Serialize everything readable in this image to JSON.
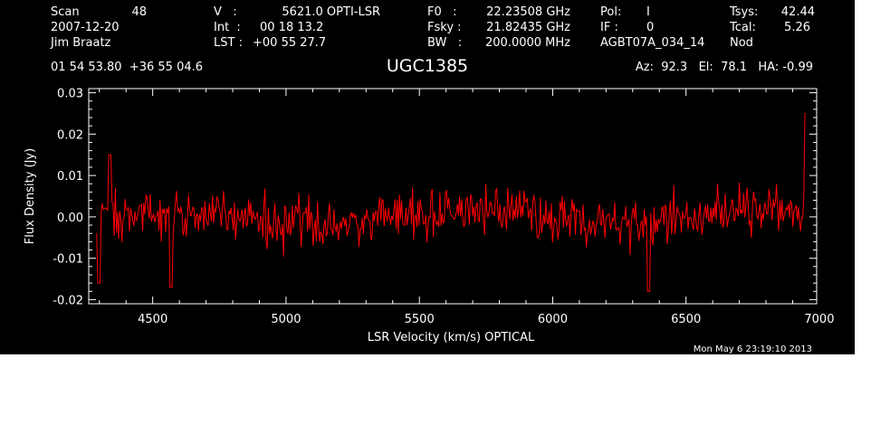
{
  "header": {
    "scan_label": "Scan",
    "scan_value": "48",
    "date": "2007-12-20",
    "observer": "Jim Braatz",
    "velocity_label": "V   :",
    "velocity_value": "5621.0 OPTI-LSR",
    "int_label": "Int  :",
    "int_value": "00 18 13.2",
    "lst_label": "LST :",
    "lst_value": "+00 55 27.7",
    "f0_label": "F0   :",
    "f0_value": "22.23508 GHz",
    "fsky_label": "Fsky :",
    "fsky_value": "21.82435 GHz",
    "bw_label": "BW   :",
    "bw_value": "200.0000 MHz",
    "pol_label": "Pol:",
    "pol_value": "I",
    "if_label": "IF :",
    "if_value": "0",
    "project": "AGBT07A_034_14",
    "tsys_label": "Tsys:",
    "tsys_value": "42.44",
    "tcal_label": "Tcal:",
    "tcal_value": "5.26",
    "procedure": "Nod",
    "coordinates": "01 54 53.80  +36 55 04.6",
    "source": "UGC1385",
    "az_el_ha": "Az:  92.3   El:  78.1   HA: -0.99"
  },
  "footer": {
    "timestamp": "Mon May  6 23:19:10 2013"
  },
  "colors": {
    "background": "#000000",
    "foreground": "#ffffff",
    "series": "#ff0000"
  },
  "chart_data": {
    "type": "line",
    "xlabel": "LSR Velocity (km/s) OPTICAL",
    "ylabel": "Flux Density (Jy)",
    "xlim": [
      4260,
      6990
    ],
    "ylim": [
      -0.021,
      0.031
    ],
    "xticks": [
      4500,
      5000,
      5500,
      6000,
      6500,
      7000
    ],
    "xtick_labels": [
      "4500",
      "5000",
      "5500",
      "6000",
      "6500",
      "7000"
    ],
    "yticks": [
      -0.02,
      -0.01,
      0.0,
      0.01,
      0.02,
      0.03
    ],
    "ytick_labels": [
      "-0.02",
      "-0.01",
      "0.00",
      "0.01",
      "0.02",
      "0.03"
    ],
    "grid": false,
    "series": [
      {
        "color": "#ff0000",
        "x_range": [
          4290,
          6950
        ],
        "approx_points": 650,
        "baseline": 0.0,
        "noise_amplitude": 0.01,
        "features": [
          {
            "x": 4300,
            "y": -0.016
          },
          {
            "x": 4340,
            "y": 0.015
          },
          {
            "x": 4570,
            "y": -0.017
          },
          {
            "x": 6360,
            "y": -0.018
          },
          {
            "x": 6950,
            "y": 0.025
          }
        ]
      }
    ]
  }
}
